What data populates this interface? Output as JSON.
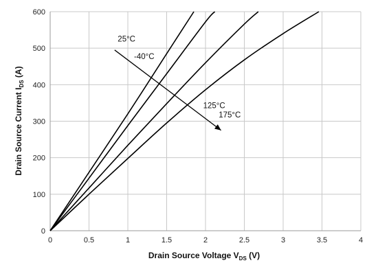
{
  "chart_data": {
    "type": "line",
    "title": "",
    "xlabel": {
      "main": "Drain Source Voltage V",
      "sub": "DS",
      "unit": " (V)"
    },
    "ylabel": {
      "main": "Drain Source Current I",
      "sub": "DS",
      "unit": " (A)"
    },
    "xlim": [
      0,
      4
    ],
    "ylim": [
      0,
      600
    ],
    "xticks": [
      0,
      0.5,
      1,
      1.5,
      2,
      2.5,
      3,
      3.5,
      4
    ],
    "xtick_labels": [
      "0",
      "0.5",
      "1",
      "1.5",
      "2",
      "2.5",
      "3",
      "3.5",
      "4"
    ],
    "yticks": [
      0,
      100,
      200,
      300,
      400,
      500,
      600
    ],
    "ytick_labels": [
      "0",
      "100",
      "200",
      "300",
      "400",
      "500",
      "600"
    ],
    "grid": true,
    "line_color": "#000000",
    "grid_color": "#c8c8c8",
    "series": [
      {
        "x": [
          0,
          0.5,
          1.0,
          1.5,
          1.85
        ],
        "y": [
          0,
          160,
          320,
          485,
          600
        ]
      },
      {
        "x": [
          0,
          0.5,
          1.0,
          1.5,
          2.0,
          2.12
        ],
        "y": [
          0,
          144,
          288,
          430,
          572,
          600
        ]
      },
      {
        "x": [
          0,
          0.5,
          1.0,
          1.5,
          2.0,
          2.5,
          2.68
        ],
        "y": [
          0,
          117,
          234,
          348,
          460,
          566,
          600
        ]
      },
      {
        "x": [
          0,
          0.5,
          1.0,
          1.5,
          2.0,
          2.5,
          3.0,
          3.46
        ],
        "y": [
          0,
          100,
          198,
          295,
          386,
          468,
          540,
          600
        ]
      }
    ],
    "annotations": {
      "labels": [
        {
          "text": "25°C",
          "x": 0.87,
          "y": 518
        },
        {
          "text": "-40°C",
          "x": 1.08,
          "y": 470
        },
        {
          "text": "125°C",
          "x": 1.97,
          "y": 336
        },
        {
          "text": "175°C",
          "x": 2.17,
          "y": 310
        }
      ],
      "arrow": {
        "from": [
          0.83,
          495
        ],
        "to": [
          2.2,
          275
        ]
      }
    }
  }
}
